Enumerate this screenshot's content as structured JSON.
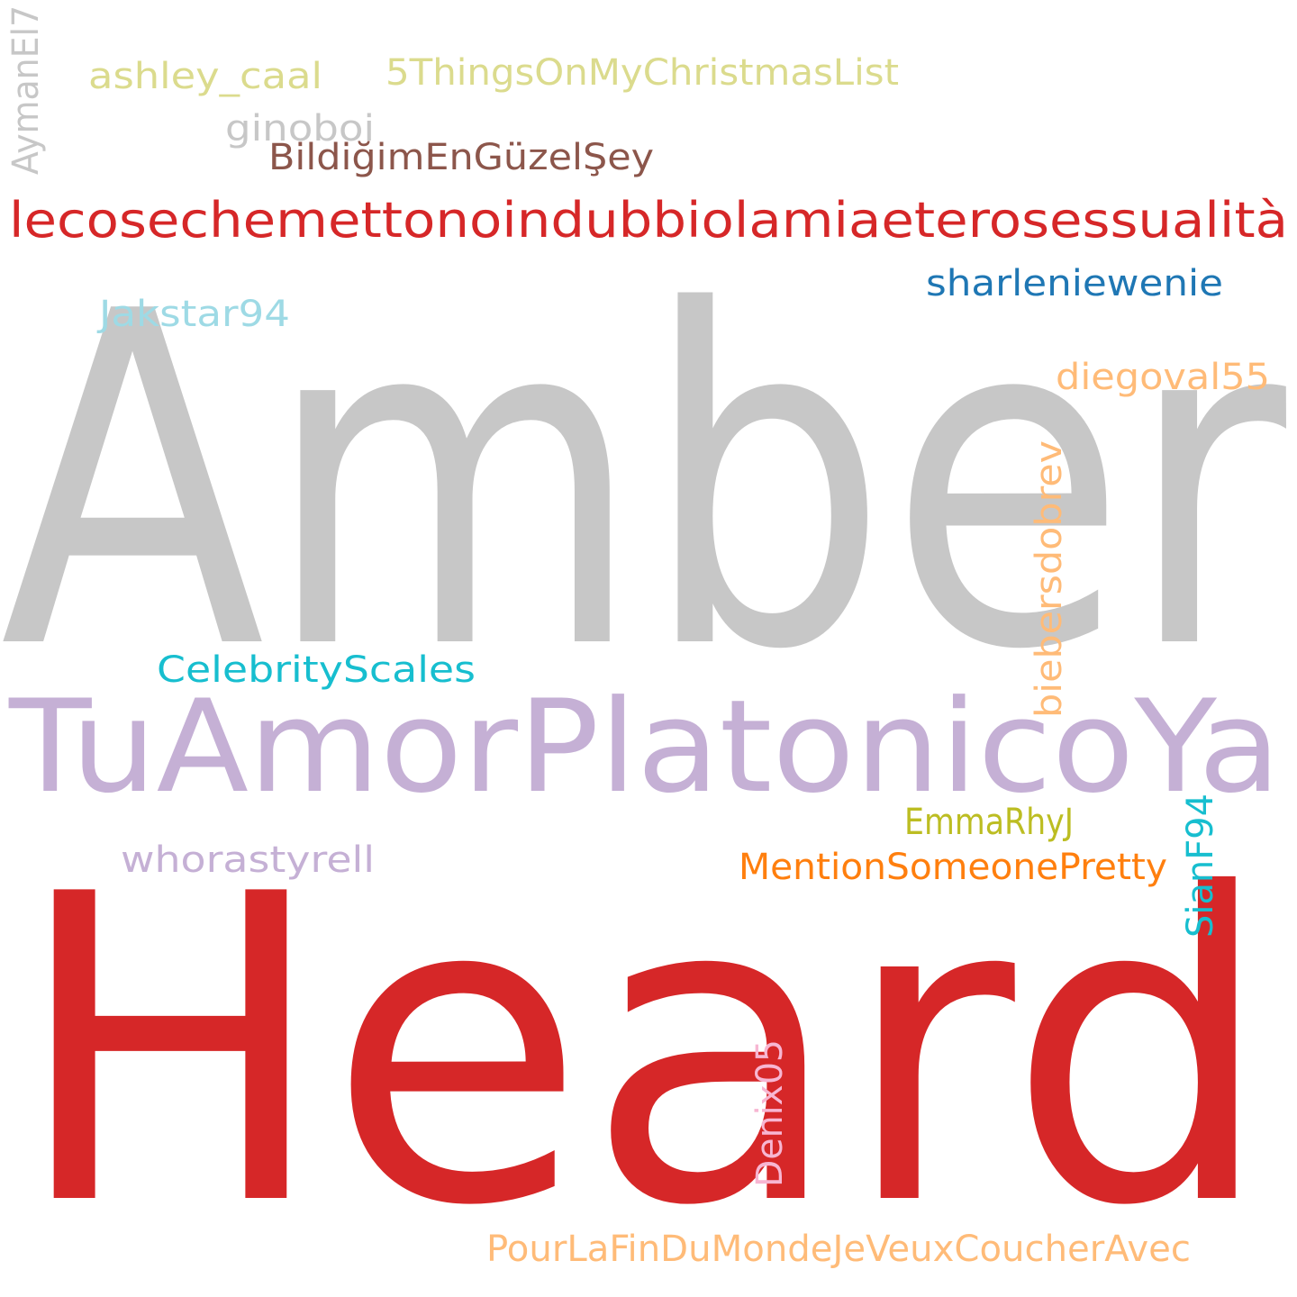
{
  "words": [
    {
      "id": "amber",
      "text": "Amber",
      "color": "#c7c7c7"
    },
    {
      "id": "heard",
      "text": "Heard",
      "color": "#d62728"
    },
    {
      "id": "tuamor",
      "text": "TuAmorPlatonicoYa",
      "color": "#c5b0d5"
    },
    {
      "id": "lecose",
      "text": "lecosechemettonoindubbiolamiaeterosessualità",
      "color": "#d62728"
    },
    {
      "id": "pourla",
      "text": "PourLaFinDuMondeJeVeuxCoucherAvec",
      "color": "#ffbb78"
    },
    {
      "id": "fivethings",
      "text": "5ThingsOnMyChristmasList",
      "color": "#dbdb8d"
    },
    {
      "id": "bildigim",
      "text": "BildiğimEnGüzelŞey",
      "color": "#8c564b"
    },
    {
      "id": "mention",
      "text": "MentionSomeonePretty",
      "color": "#ff7f0e"
    },
    {
      "id": "celebrity",
      "text": "CelebrityScales",
      "color": "#17becf"
    },
    {
      "id": "sharlenie",
      "text": "sharleniewenie",
      "color": "#1f77b4"
    },
    {
      "id": "whoras",
      "text": "whorastyrell",
      "color": "#c5b0d5"
    },
    {
      "id": "biebers",
      "text": "biebersdobrev",
      "color": "#ffbb78"
    },
    {
      "id": "diegoval",
      "text": "diegoval55",
      "color": "#ffbb78"
    },
    {
      "id": "ashley",
      "text": "ashley_caal",
      "color": "#dbdb8d"
    },
    {
      "id": "jakstar",
      "text": "Jakstar94",
      "color": "#9edae5"
    },
    {
      "id": "emmarhy",
      "text": "EmmaRhyJ",
      "color": "#bcbd22"
    },
    {
      "id": "sianf",
      "text": "SianF94",
      "color": "#17becf"
    },
    {
      "id": "denix",
      "text": "Denix05",
      "color": "#f7b6d2"
    },
    {
      "id": "ginoboi",
      "text": "ginoboi",
      "color": "#c7c7c7"
    },
    {
      "id": "aymanel",
      "text": "AymanEl7",
      "color": "#c7c7c7"
    }
  ]
}
